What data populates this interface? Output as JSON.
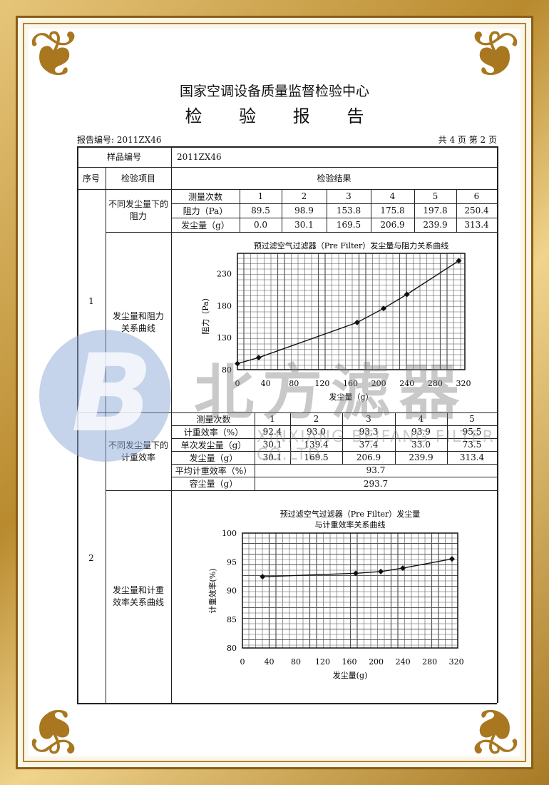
{
  "header": {
    "org": "国家空调设备质量监督检验中心",
    "title": "检 验 报 告",
    "report_no": "报告编号: 2011ZX46",
    "page": "共 4 页 第 2 页"
  },
  "table": {
    "sample_label": "样品编号",
    "sample_value": "2011ZX46",
    "col_no": "序号",
    "col_item": "检验项目",
    "col_result": "检验结果"
  },
  "section1": {
    "no": "1",
    "item_a": "不同发尘量下的阻力",
    "item_b": "发尘量和阻力关系曲线",
    "rows": [
      [
        "测量次数",
        "1",
        "2",
        "3",
        "4",
        "5",
        "6"
      ],
      [
        "阻力（Pa）",
        "89.5",
        "98.9",
        "153.8",
        "175.8",
        "197.8",
        "250.4"
      ],
      [
        "发尘量（g）",
        "0.0",
        "30.1",
        "169.5",
        "206.9",
        "239.9",
        "313.4"
      ]
    ]
  },
  "section2": {
    "no": "2",
    "item_a": "不同发尘量下的计重效率",
    "item_b": "发尘量和计重效率关系曲线",
    "rows": [
      [
        "测量次数",
        "1",
        "2",
        "3",
        "4",
        "5"
      ],
      [
        "计重效率（%）",
        "92.4",
        "93.0",
        "93.3",
        "93.9",
        "95.5"
      ],
      [
        "单次发尘量（g）",
        "30.1",
        "139.4",
        "37.4",
        "33.0",
        "73.5"
      ],
      [
        "发尘量（g）",
        "30.1",
        "169.5",
        "206.9",
        "239.9",
        "313.4"
      ]
    ],
    "avg_label": "平均计重效率（%）",
    "avg_value": "93.7",
    "cap_label": "容尘量（g）",
    "cap_value": "293.7"
  },
  "chart_data": [
    {
      "type": "line",
      "title": "预过滤空气过滤器（Pre Filter）发尘量与阻力关系曲线",
      "xlabel": "发尘量（g）",
      "ylabel": "阻力（Pa）",
      "x": [
        0.0,
        30.1,
        169.5,
        206.9,
        239.9,
        313.4
      ],
      "y": [
        89.5,
        98.9,
        153.8,
        175.8,
        197.8,
        250.4
      ],
      "xticks": [
        "0",
        "40",
        "80",
        "120",
        "160",
        "200",
        "240",
        "280",
        "320"
      ],
      "yticks": [
        "80",
        "130",
        "180",
        "230"
      ],
      "xlim": [
        0,
        322
      ],
      "ylim": [
        80,
        262
      ],
      "grid": true
    },
    {
      "type": "line",
      "title": "预过滤空气过滤器（Pre Filter）发尘量",
      "title2": "与计重效率关系曲线",
      "xlabel": "发尘量(g)",
      "ylabel": "计重效率(%)",
      "x": [
        30.1,
        169.5,
        206.9,
        239.9,
        313.4
      ],
      "y": [
        92.4,
        93.0,
        93.3,
        93.9,
        95.5
      ],
      "xticks": [
        "0",
        "40",
        "80",
        "120",
        "160",
        "200",
        "240",
        "280",
        "320"
      ],
      "yticks": [
        "80",
        "85",
        "90",
        "95",
        "100"
      ],
      "xlim": [
        0,
        322
      ],
      "ylim": [
        80,
        100
      ],
      "grid": true
    }
  ],
  "watermark": {
    "brand": "北方滤器",
    "company": "XINXIANG BEIFANG FILTER CO.LTD."
  },
  "colors": {
    "frame_gold": "#b98a2e",
    "watermark_blue": "#9db7dc",
    "watermark_gray": "#8c8c8c"
  }
}
